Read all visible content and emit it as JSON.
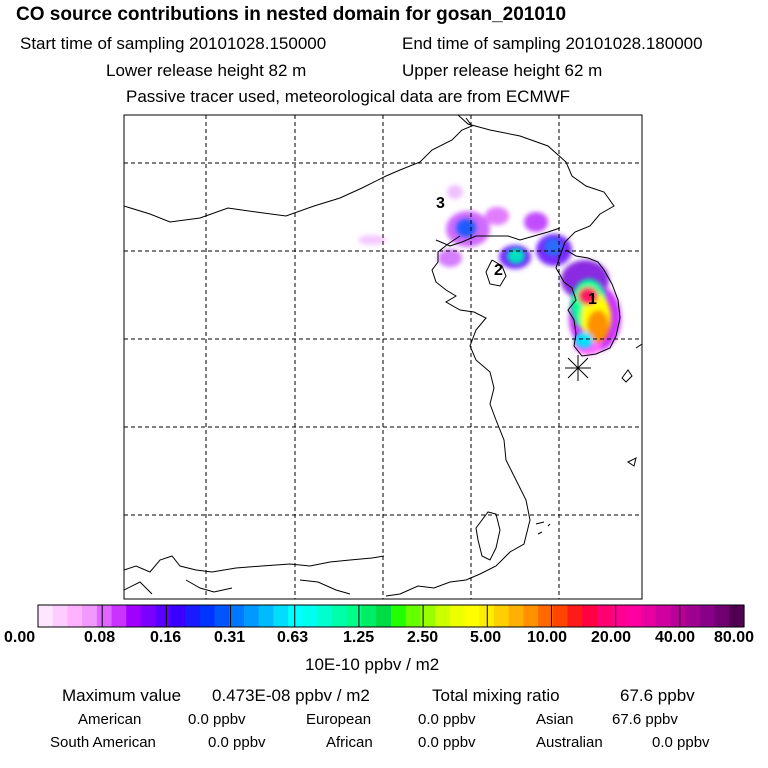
{
  "header": {
    "title": "CO  source contributions in nested domain for gosan_201010",
    "start_label": "Start time of sampling 20101028.150000",
    "end_label": "End time of sampling 20101028.180000",
    "lower_label": "Lower release height   82 m",
    "upper_label": "Upper release height   62 m",
    "info": "Passive tracer used, meteorological data are from ECMWF"
  },
  "map": {
    "markers": [
      {
        "label": "1"
      },
      {
        "label": "2"
      },
      {
        "label": "3"
      }
    ],
    "receptor_icon": "asterisk-icon"
  },
  "colorbar": {
    "ticks": [
      "0.00",
      "0.08",
      "0.16",
      "0.31",
      "0.63",
      "1.25",
      "2.50",
      "5.00",
      "10.00",
      "20.00",
      "40.00",
      "80.00"
    ],
    "unit": "10E-10 ppbv / m2",
    "colors": [
      "#ffe6ff",
      "#ffccff",
      "#ffb3ff",
      "#f299ff",
      "#e066ff",
      "#c833ff",
      "#a000ff",
      "#7a00ff",
      "#5a00ff",
      "#3a00ff",
      "#1a1aff",
      "#0033ff",
      "#0055ff",
      "#0077ff",
      "#0099ff",
      "#00bbff",
      "#00ddff",
      "#00ffff",
      "#00ffee",
      "#00ffcc",
      "#00ffaa",
      "#00ff88",
      "#00ee66",
      "#00dd44",
      "#22ff00",
      "#66ff00",
      "#99ff00",
      "#ccff00",
      "#eeff00",
      "#ffff00",
      "#ffee00",
      "#ffd000",
      "#ffb000",
      "#ff9000",
      "#ff6a00",
      "#ff4500",
      "#ff1a1a",
      "#ff0040",
      "#ff0070",
      "#ff0090",
      "#ff00a0",
      "#e800a0",
      "#d000a0",
      "#b80098",
      "#a00090",
      "#880088",
      "#700070",
      "#500050"
    ]
  },
  "summary": {
    "max_label": "Maximum value",
    "max_value": "0.473E-08 ppbv / m2",
    "total_label": "Total mixing ratio",
    "total_value": "67.6 ppbv",
    "regions": [
      {
        "name": "American",
        "value": "0.0 ppbv"
      },
      {
        "name": "European",
        "value": "0.0 ppbv"
      },
      {
        "name": "Asian",
        "value": "67.6 ppbv"
      },
      {
        "name": "South American",
        "value": "0.0 ppbv"
      },
      {
        "name": "African",
        "value": "0.0 ppbv"
      },
      {
        "name": "Australian",
        "value": "0.0 ppbv"
      }
    ]
  }
}
